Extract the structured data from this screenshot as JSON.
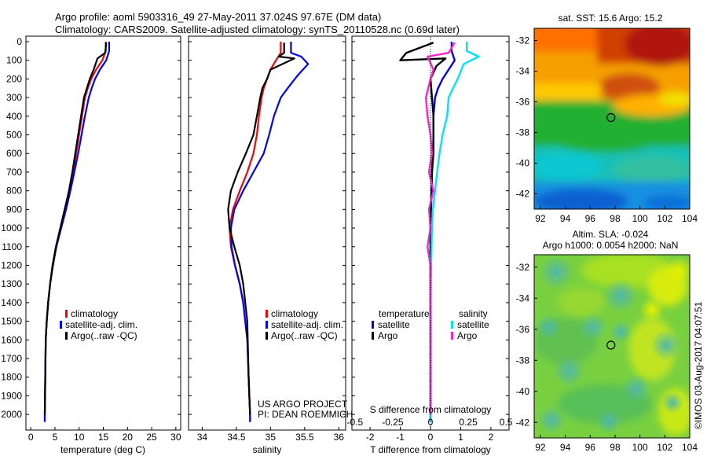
{
  "header": {
    "line1": "Argo profile: aoml 5903316_49 27-May-2011 37.024S 97.67E (DM data)",
    "line2": "Climatology: CARS2009. Satellite-adjusted climatology: synTS_20110528.nc (0.69d later)"
  },
  "credit": "©IMOS 03-Aug-2017 04:07:51",
  "project": {
    "line1": "US ARGO PROJECT",
    "line2": "PI: DEAN ROEMMICH"
  },
  "colors": {
    "climatology": "#ff0000",
    "satellite": "#0000ff",
    "argo": "#000000",
    "sal_sat": "#00e5ff",
    "sal_argo": "#ff22cc"
  },
  "chart_data": [
    {
      "type": "line",
      "xlabel": "temperature (deg C)",
      "xlim": [
        -1,
        31
      ],
      "xticks": [
        0,
        5,
        10,
        15,
        20,
        25,
        30
      ],
      "ylim": [
        0,
        2050
      ],
      "yticks": [
        0,
        100,
        200,
        300,
        400,
        500,
        600,
        700,
        800,
        900,
        1000,
        1100,
        1200,
        1300,
        1400,
        1500,
        1600,
        1700,
        1800,
        1900,
        2000
      ],
      "legend": [
        "climatology",
        "satellite-adj. clim.",
        "Argo(..raw -QC)"
      ],
      "legend_position": "lower-right",
      "series": [
        {
          "name": "climatology",
          "color": "#ff0000",
          "x": [
            15.5,
            15.5,
            14.8,
            13.5,
            12.5,
            11.8,
            11.2,
            10.6,
            10.0,
            9.4,
            8.8,
            8.1,
            7.2,
            6.2,
            5.2,
            4.5,
            4.0,
            3.6,
            3.3,
            3.1,
            3.0,
            2.9,
            2.9
          ],
          "y": [
            0,
            50,
            100,
            150,
            200,
            250,
            300,
            400,
            500,
            600,
            700,
            800,
            900,
            1000,
            1100,
            1200,
            1300,
            1400,
            1500,
            1600,
            1800,
            2000,
            2040
          ]
        },
        {
          "name": "satellite-adj. clim.",
          "color": "#0000ff",
          "x": [
            16.2,
            16.2,
            15.6,
            14.3,
            13.3,
            12.6,
            12.0,
            11.2,
            10.5,
            9.8,
            9.0,
            8.2,
            7.3,
            6.3,
            5.3,
            4.6,
            4.0,
            3.6,
            3.3,
            3.1,
            3.0,
            2.9,
            2.9
          ],
          "y": [
            0,
            50,
            100,
            150,
            200,
            250,
            300,
            400,
            500,
            600,
            700,
            800,
            900,
            1000,
            1100,
            1200,
            1300,
            1400,
            1500,
            1600,
            1800,
            2000,
            2040
          ]
        },
        {
          "name": "Argo(..raw -QC)",
          "color": "#000000",
          "x": [
            15.6,
            15.4,
            13.8,
            13.0,
            12.2,
            11.6,
            11.0,
            10.4,
            9.8,
            9.2,
            8.6,
            7.9,
            7.0,
            6.1,
            5.2,
            4.5,
            4.0,
            3.6,
            3.3,
            3.1,
            3.0,
            2.9
          ],
          "y": [
            5,
            60,
            90,
            150,
            200,
            250,
            300,
            400,
            500,
            600,
            700,
            800,
            900,
            1000,
            1100,
            1200,
            1300,
            1400,
            1500,
            1600,
            1800,
            2000
          ]
        }
      ]
    },
    {
      "type": "line",
      "xlabel": "salinity",
      "xlim": [
        33.8,
        36.1
      ],
      "xticks": [
        34,
        34.5,
        35,
        35.5,
        36
      ],
      "ylim": [
        0,
        2050
      ],
      "legend": [
        "climatology",
        "satellite-adj. clim.",
        "Argo(..raw -QC)"
      ],
      "legend_position": "lower-right",
      "series": [
        {
          "name": "climatology",
          "color": "#ff0000",
          "x": [
            35.15,
            35.15,
            35.08,
            35.0,
            34.95,
            34.9,
            34.87,
            34.83,
            34.8,
            34.75,
            34.66,
            34.55,
            34.45,
            34.4,
            34.42,
            34.48,
            34.55,
            34.6,
            34.63,
            34.66,
            34.68,
            34.7,
            34.7
          ],
          "y": [
            0,
            60,
            100,
            150,
            200,
            250,
            300,
            400,
            500,
            600,
            700,
            800,
            900,
            1000,
            1100,
            1200,
            1300,
            1400,
            1500,
            1600,
            1800,
            2000,
            2040
          ]
        },
        {
          "name": "satellite-adj. clim.",
          "color": "#0000ff",
          "x": [
            35.3,
            35.3,
            35.45,
            35.55,
            35.4,
            35.25,
            35.15,
            35.05,
            34.98,
            34.9,
            34.75,
            34.6,
            34.47,
            34.42,
            34.43,
            34.48,
            34.55,
            34.6,
            34.63,
            34.66,
            34.68,
            34.7,
            34.7
          ],
          "y": [
            0,
            60,
            80,
            120,
            180,
            250,
            300,
            400,
            500,
            600,
            700,
            800,
            900,
            1000,
            1100,
            1200,
            1300,
            1400,
            1500,
            1600,
            1800,
            2000,
            2040
          ]
        },
        {
          "name": "Argo(..raw -QC)",
          "color": "#000000",
          "x": [
            35.2,
            35.2,
            35.12,
            35.35,
            35.0,
            34.95,
            34.88,
            34.85,
            34.8,
            34.75,
            34.64,
            34.52,
            34.42,
            34.38,
            34.4,
            34.47,
            34.55,
            34.6,
            34.63,
            34.66,
            34.68,
            34.7
          ],
          "y": [
            5,
            60,
            80,
            90,
            150,
            200,
            250,
            300,
            400,
            500,
            600,
            700,
            800,
            900,
            1000,
            1100,
            1200,
            1300,
            1400,
            1500,
            1800,
            2000
          ]
        }
      ]
    },
    {
      "type": "line",
      "xlabel": "T difference from climatology",
      "xlabel_top": "S difference from climatology",
      "xlim": [
        -2.6,
        2.6
      ],
      "xticks": [
        -2,
        -1,
        0,
        1,
        2
      ],
      "xticks_top": [
        -0.5,
        -0.25,
        0,
        0.25,
        0.5
      ],
      "xticks_top_labels": [
        "-0.5",
        "-0.25",
        "0",
        "0.25",
        "0.5"
      ],
      "ylim": [
        0,
        2050
      ],
      "legend_temperature_title": "temperature",
      "legend_salinity_title": "salinity",
      "legend_entries": [
        {
          "label": "satellite",
          "color": "#0000ff"
        },
        {
          "label": "Argo",
          "color": "#000000"
        },
        {
          "label": "satellite",
          "color": "#00e5ff"
        },
        {
          "label": "Argo",
          "color": "#ff22cc"
        }
      ],
      "series": [
        {
          "name": "T satellite",
          "color": "#0000ff",
          "x": [
            0.7,
            0.7,
            0.8,
            0.6,
            0.4,
            0.25,
            0.15,
            0.1,
            0.1,
            0.08,
            0.05,
            0.03,
            0.02,
            0,
            0,
            0,
            0,
            0,
            0
          ],
          "y": [
            0,
            50,
            100,
            150,
            200,
            250,
            300,
            400,
            500,
            600,
            700,
            800,
            900,
            1000,
            1100,
            1200,
            1400,
            1700,
            2040
          ]
        },
        {
          "name": "T Argo",
          "color": "#000000",
          "x": [
            0.1,
            -0.8,
            -1.0,
            0.5,
            0.2,
            0.0,
            0.05,
            0.1,
            0.1,
            0.05,
            0.05,
            0.0,
            0.0,
            0,
            0,
            0,
            0
          ],
          "y": [
            5,
            60,
            100,
            90,
            130,
            200,
            300,
            400,
            600,
            700,
            800,
            900,
            1000,
            1200,
            1400,
            1700,
            2000
          ]
        },
        {
          "name": "S satellite",
          "color": "#00e5ff",
          "x": [
            1.2,
            1.2,
            1.6,
            1.1,
            1.0,
            0.9,
            0.75,
            0.6,
            0.55,
            0.4,
            0.3,
            0.22,
            0.15,
            0.08,
            0.05,
            0.02,
            0,
            0
          ],
          "y": [
            0,
            50,
            80,
            120,
            160,
            200,
            250,
            300,
            400,
            500,
            600,
            700,
            800,
            900,
            1000,
            1200,
            1500,
            2040
          ]
        },
        {
          "name": "S Argo",
          "color": "#ff22cc",
          "x": [
            0.8,
            0.6,
            -0.1,
            0.1,
            0.0,
            -0.15,
            -0.1,
            0.0,
            0.05,
            -0.05,
            0.1,
            -0.05,
            0.0,
            -0.1,
            0.0,
            0,
            0
          ],
          "y": [
            5,
            60,
            80,
            150,
            200,
            300,
            400,
            500,
            600,
            700,
            800,
            900,
            1000,
            1100,
            1200,
            1500,
            2000
          ]
        }
      ]
    },
    {
      "type": "heatmap",
      "title": "sat. SST: 15.6 Argo: 15.2",
      "xlim": [
        91.5,
        104
      ],
      "ylim": [
        -43,
        -31.2
      ],
      "xticks": [
        92,
        94,
        96,
        98,
        100,
        102,
        104
      ],
      "yticks": [
        -32,
        -34,
        -36,
        -38,
        -40,
        -42
      ],
      "marker": {
        "lon": 97.67,
        "lat": -37.024
      }
    },
    {
      "type": "heatmap",
      "title_line1": "Altim. SLA: -0.024",
      "title_line2": "Argo h1000: 0.0054 h2000: NaN",
      "xlim": [
        91.5,
        104
      ],
      "ylim": [
        -43,
        -31.2
      ],
      "xticks": [
        92,
        94,
        96,
        98,
        100,
        102,
        104
      ],
      "yticks": [
        -32,
        -34,
        -36,
        -38,
        -40,
        -42
      ],
      "marker": {
        "lon": 97.67,
        "lat": -37.024
      }
    }
  ]
}
